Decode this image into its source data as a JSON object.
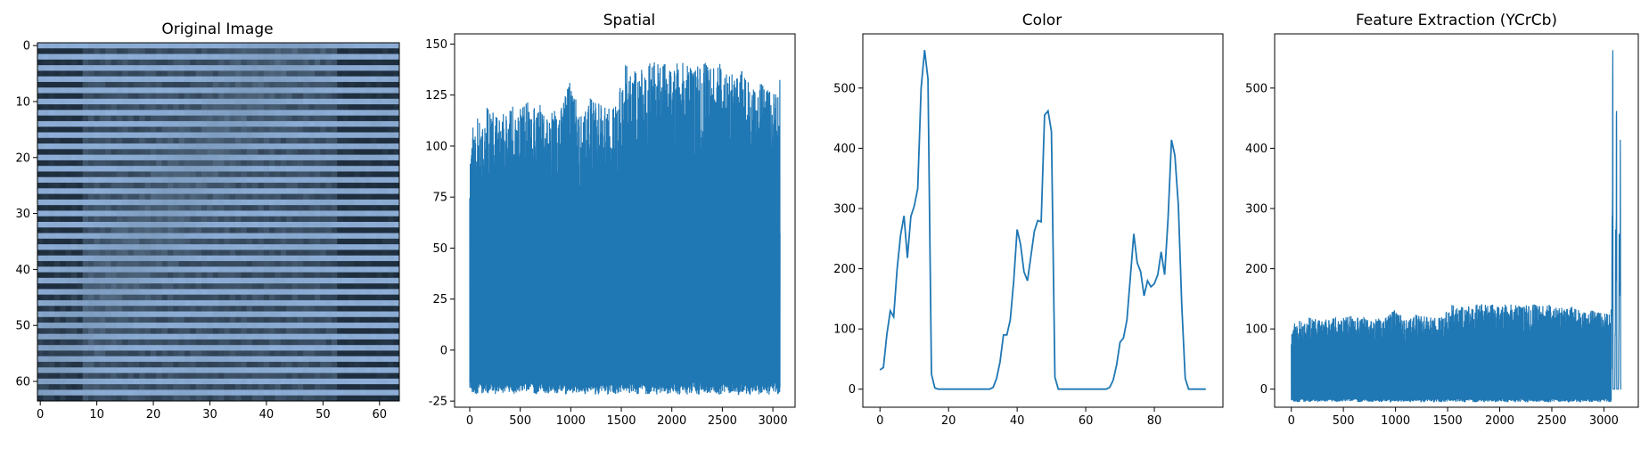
{
  "figure": {
    "panels": [
      {
        "title": "Original Image"
      },
      {
        "title": "Spatial"
      },
      {
        "title": "Color"
      },
      {
        "title": "Feature Extraction (YCrCb)"
      }
    ]
  },
  "chart_data": [
    {
      "type": "heatmap",
      "title": "Original Image",
      "xlabel": "",
      "ylabel": "",
      "xlim": [
        -0.5,
        63.5
      ],
      "ylim": [
        63.5,
        -0.5
      ],
      "xticks": [
        0,
        10,
        20,
        30,
        40,
        50,
        60
      ],
      "yticks": [
        0,
        10,
        20,
        30,
        40,
        50,
        60
      ],
      "grid": false,
      "image_size": [
        64,
        64
      ],
      "colors": {
        "light": "#93b4df",
        "mid": "#6e8aa6",
        "dark": "#1e2e3e"
      }
    },
    {
      "type": "line",
      "title": "Spatial",
      "xlabel": "",
      "ylabel": "",
      "xlim": [
        -150,
        3220
      ],
      "ylim": [
        -28,
        155
      ],
      "xticks": [
        0,
        500,
        1000,
        1500,
        2000,
        2500,
        3000
      ],
      "yticks": [
        -25,
        0,
        25,
        50,
        75,
        100,
        125,
        150
      ],
      "grid": false,
      "color": "#1f77b4",
      "n_points": 3072,
      "peak_envelope": {
        "x": [
          0,
          50,
          100,
          150,
          200,
          300,
          400,
          500,
          600,
          700,
          800,
          900,
          1000,
          1100,
          1200,
          1300,
          1400,
          1500,
          1550,
          1600,
          1700,
          1800,
          1900,
          2000,
          2100,
          2200,
          2300,
          2350,
          2400,
          2500,
          2600,
          2700,
          2800,
          2900,
          3000,
          3071
        ],
        "y": [
          107,
          116,
          113,
          120,
          118,
          114,
          120,
          119,
          123,
          120,
          117,
          122,
          132,
          115,
          124,
          120,
          118,
          130,
          142,
          135,
          140,
          143,
          141,
          140,
          141,
          138,
          140,
          146,
          138,
          141,
          136,
          137,
          128,
          132,
          126,
          134
        ]
      },
      "trough_range": [
        -20,
        -14
      ]
    },
    {
      "type": "line",
      "title": "Color",
      "xlabel": "",
      "ylabel": "",
      "xlim": [
        -5,
        100
      ],
      "ylim": [
        -30,
        590
      ],
      "xticks": [
        0,
        20,
        40,
        60,
        80
      ],
      "yticks": [
        0,
        100,
        200,
        300,
        400,
        500
      ],
      "grid": false,
      "color": "#1f77b4",
      "series": [
        {
          "x": [
            0,
            1,
            2,
            3,
            4,
            5,
            6,
            7,
            8,
            9,
            10,
            11,
            12,
            13,
            14,
            15,
            16,
            17,
            18,
            19,
            20,
            21,
            22,
            23,
            24,
            25,
            26,
            27,
            28,
            29,
            30,
            31,
            32,
            33,
            34,
            35,
            36,
            37,
            38,
            39,
            40,
            41,
            42,
            43,
            44,
            45,
            46,
            47,
            48,
            49,
            50,
            51,
            52,
            53,
            54,
            55,
            56,
            57,
            58,
            59,
            60,
            61,
            62,
            63,
            64,
            65,
            66,
            67,
            68,
            69,
            70,
            71,
            72,
            73,
            74,
            75,
            76,
            77,
            78,
            79,
            80,
            81,
            82,
            83,
            84,
            85,
            86,
            87,
            88,
            89,
            90,
            91,
            92,
            93,
            94,
            95
          ],
          "values": [
            32,
            36,
            90,
            130,
            120,
            200,
            255,
            288,
            218,
            287,
            304,
            333,
            500,
            563,
            515,
            25,
            2,
            0,
            0,
            0,
            0,
            0,
            0,
            0,
            0,
            0,
            0,
            0,
            0,
            0,
            0,
            0,
            0,
            3,
            18,
            45,
            90,
            90,
            115,
            180,
            265,
            240,
            195,
            180,
            220,
            262,
            280,
            278,
            455,
            462,
            428,
            20,
            0,
            0,
            0,
            0,
            0,
            0,
            0,
            0,
            0,
            0,
            0,
            0,
            0,
            0,
            0,
            3,
            15,
            40,
            78,
            85,
            115,
            185,
            258,
            210,
            195,
            155,
            180,
            170,
            175,
            190,
            228,
            190,
            282,
            414,
            388,
            305,
            140,
            18,
            0,
            0,
            0,
            0,
            0,
            0
          ]
        }
      ]
    },
    {
      "type": "line",
      "title": "Feature Extraction (YCrCb)",
      "xlabel": "",
      "ylabel": "",
      "xlim": [
        -160,
        3330
      ],
      "ylim": [
        -30,
        590
      ],
      "xticks": [
        0,
        500,
        1000,
        1500,
        2000,
        2500,
        3000
      ],
      "yticks": [
        0,
        100,
        200,
        300,
        400,
        500
      ],
      "grid": false,
      "color": "#1f77b4",
      "n_points": 3168,
      "dense_part_end": 3071,
      "color_hist_tail": [
        32,
        36,
        90,
        130,
        120,
        200,
        255,
        288,
        218,
        287,
        304,
        333,
        500,
        563,
        515,
        25,
        2,
        0,
        0,
        0,
        0,
        0,
        0,
        0,
        0,
        0,
        0,
        0,
        0,
        0,
        0,
        0,
        0,
        3,
        18,
        45,
        90,
        90,
        115,
        180,
        265,
        240,
        195,
        180,
        220,
        262,
        280,
        278,
        455,
        462,
        428,
        20,
        0,
        0,
        0,
        0,
        0,
        0,
        0,
        0,
        0,
        0,
        0,
        0,
        0,
        0,
        0,
        3,
        15,
        40,
        78,
        85,
        115,
        185,
        258,
        210,
        195,
        155,
        180,
        170,
        175,
        190,
        228,
        190,
        282,
        414,
        388,
        305,
        140,
        18,
        0,
        0,
        0,
        0,
        0,
        0
      ]
    }
  ]
}
